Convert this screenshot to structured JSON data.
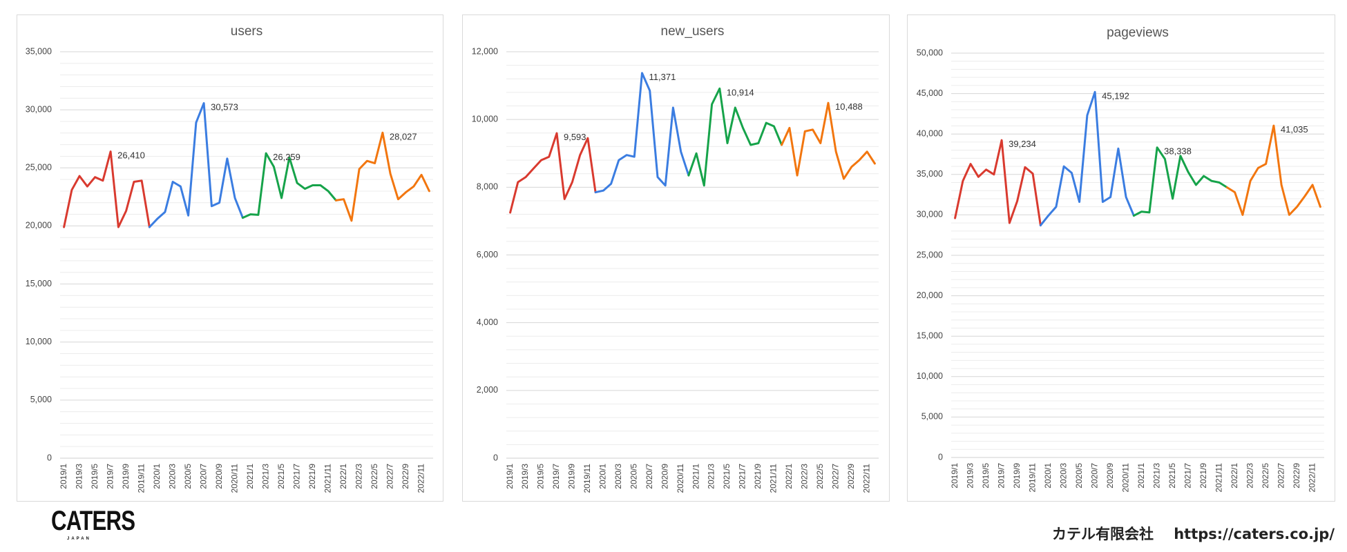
{
  "chart_data": [
    {
      "type": "line",
      "title": "users",
      "ylim": [
        0,
        35000
      ],
      "yticks": [
        "0",
        "5,000",
        "10,000",
        "15,000",
        "20,000",
        "25,000",
        "30,000",
        "35,000"
      ],
      "x": [
        "2019/1",
        "2019/2",
        "2019/3",
        "2019/4",
        "2019/5",
        "2019/6",
        "2019/7",
        "2019/8",
        "2019/9",
        "2019/10",
        "2019/11",
        "2019/12",
        "2020/1",
        "2020/2",
        "2020/3",
        "2020/4",
        "2020/5",
        "2020/6",
        "2020/7",
        "2020/8",
        "2020/9",
        "2020/10",
        "2020/11",
        "2020/12",
        "2021/1",
        "2021/2",
        "2021/3",
        "2021/4",
        "2021/5",
        "2021/6",
        "2021/7",
        "2021/8",
        "2021/9",
        "2021/10",
        "2021/11",
        "2021/12",
        "2022/1",
        "2022/2",
        "2022/3",
        "2022/4",
        "2022/5",
        "2022/6",
        "2022/7",
        "2022/8",
        "2022/9",
        "2022/10",
        "2022/11",
        "2022/12"
      ],
      "xticks": [
        "2019/1",
        "2019/3",
        "2019/5",
        "2019/7",
        "2019/9",
        "2019/11",
        "2020/1",
        "2020/3",
        "2020/5",
        "2020/7",
        "2020/9",
        "2020/11",
        "2021/1",
        "2021/3",
        "2021/5",
        "2021/7",
        "2021/9",
        "2021/11",
        "2022/1",
        "2022/3",
        "2022/5",
        "2022/7",
        "2022/9",
        "2022/11"
      ],
      "values": [
        19900,
        23100,
        24300,
        23400,
        24200,
        23900,
        26410,
        19900,
        21300,
        23800,
        23900,
        19900,
        20600,
        21200,
        23800,
        23400,
        20900,
        28900,
        30573,
        21700,
        22000,
        25800,
        22400,
        20700,
        21000,
        20950,
        26259,
        25100,
        22400,
        25900,
        23700,
        23200,
        23500,
        23500,
        23000,
        22200,
        22300,
        20450,
        24900,
        25600,
        25400,
        28027,
        24500,
        22300,
        22900,
        23400,
        24400,
        23000
      ],
      "segments": [
        {
          "name": "2019",
          "color": "#d93a2f",
          "range": [
            0,
            11
          ]
        },
        {
          "name": "2020",
          "color": "#3b7de1",
          "range": [
            11,
            23
          ]
        },
        {
          "name": "2021",
          "color": "#16a34a",
          "range": [
            23,
            35
          ]
        },
        {
          "name": "2022",
          "color": "#f2760f",
          "range": [
            35,
            47
          ]
        }
      ],
      "labels": [
        {
          "index": 6,
          "text": "26,410"
        },
        {
          "index": 18,
          "text": "30,573"
        },
        {
          "index": 26,
          "text": "26,259"
        },
        {
          "index": 41,
          "text": "28,027"
        }
      ]
    },
    {
      "type": "line",
      "title": "new_users",
      "ylim": [
        0,
        12000
      ],
      "yticks": [
        "0",
        "2,000",
        "4,000",
        "6,000",
        "8,000",
        "10,000",
        "12,000"
      ],
      "x": [
        "2019/1",
        "2019/2",
        "2019/3",
        "2019/4",
        "2019/5",
        "2019/6",
        "2019/7",
        "2019/8",
        "2019/9",
        "2019/10",
        "2019/11",
        "2019/12",
        "2020/1",
        "2020/2",
        "2020/3",
        "2020/4",
        "2020/5",
        "2020/6",
        "2020/7",
        "2020/8",
        "2020/9",
        "2020/10",
        "2020/11",
        "2020/12",
        "2021/1",
        "2021/2",
        "2021/3",
        "2021/4",
        "2021/5",
        "2021/6",
        "2021/7",
        "2021/8",
        "2021/9",
        "2021/10",
        "2021/11",
        "2021/12",
        "2022/1",
        "2022/2",
        "2022/3",
        "2022/4",
        "2022/5",
        "2022/6",
        "2022/7",
        "2022/8",
        "2022/9",
        "2022/10",
        "2022/11",
        "2022/12"
      ],
      "xticks": [
        "2019/1",
        "2019/3",
        "2019/5",
        "2019/7",
        "2019/9",
        "2019/11",
        "2020/1",
        "2020/3",
        "2020/5",
        "2020/7",
        "2020/9",
        "2020/11",
        "2021/1",
        "2021/3",
        "2021/5",
        "2021/7",
        "2021/9",
        "2021/11",
        "2022/1",
        "2022/3",
        "2022/5",
        "2022/7",
        "2022/9",
        "2022/11"
      ],
      "values": [
        7250,
        8150,
        8300,
        8550,
        8800,
        8900,
        9593,
        7650,
        8150,
        8950,
        9450,
        7850,
        7900,
        8100,
        8800,
        8950,
        8900,
        11371,
        10850,
        8300,
        8050,
        10350,
        9050,
        8350,
        9000,
        8050,
        10450,
        10914,
        9300,
        10350,
        9750,
        9250,
        9300,
        9900,
        9800,
        9250,
        9750,
        8350,
        9650,
        9700,
        9300,
        10488,
        9050,
        8250,
        8600,
        8800,
        9050,
        8700
      ],
      "segments": [
        {
          "name": "2019",
          "color": "#d93a2f",
          "range": [
            0,
            11
          ]
        },
        {
          "name": "2020",
          "color": "#3b7de1",
          "range": [
            11,
            23
          ]
        },
        {
          "name": "2021",
          "color": "#16a34a",
          "range": [
            23,
            35
          ]
        },
        {
          "name": "2022",
          "color": "#f2760f",
          "range": [
            35,
            47
          ]
        }
      ],
      "labels": [
        {
          "index": 6,
          "text": "9,593"
        },
        {
          "index": 17,
          "text": "11,371"
        },
        {
          "index": 27,
          "text": "10,914"
        },
        {
          "index": 41,
          "text": "10,488"
        }
      ]
    },
    {
      "type": "line",
      "title": "pageviews",
      "ylim": [
        0,
        50000
      ],
      "yticks": [
        "0",
        "5,000",
        "10,000",
        "15,000",
        "20,000",
        "25,000",
        "30,000",
        "35,000",
        "40,000",
        "45,000",
        "50,000"
      ],
      "x": [
        "2019/1",
        "2019/2",
        "2019/3",
        "2019/4",
        "2019/5",
        "2019/6",
        "2019/7",
        "2019/8",
        "2019/9",
        "2019/10",
        "2019/11",
        "2019/12",
        "2020/1",
        "2020/2",
        "2020/3",
        "2020/4",
        "2020/5",
        "2020/6",
        "2020/7",
        "2020/8",
        "2020/9",
        "2020/10",
        "2020/11",
        "2020/12",
        "2021/1",
        "2021/2",
        "2021/3",
        "2021/4",
        "2021/5",
        "2021/6",
        "2021/7",
        "2021/8",
        "2021/9",
        "2021/10",
        "2021/11",
        "2021/12",
        "2022/1",
        "2022/2",
        "2022/3",
        "2022/4",
        "2022/5",
        "2022/6",
        "2022/7",
        "2022/8",
        "2022/9",
        "2022/10",
        "2022/11",
        "2022/12"
      ],
      "xticks": [
        "2019/1",
        "2019/3",
        "2019/5",
        "2019/7",
        "2019/9",
        "2019/11",
        "2020/1",
        "2020/3",
        "2020/5",
        "2020/7",
        "2020/9",
        "2020/11",
        "2021/1",
        "2021/3",
        "2021/5",
        "2021/7",
        "2021/9",
        "2021/11",
        "2022/1",
        "2022/3",
        "2022/5",
        "2022/7",
        "2022/9",
        "2022/11"
      ],
      "values": [
        29600,
        34200,
        36300,
        34700,
        35600,
        35000,
        39234,
        29000,
        31700,
        35900,
        35100,
        28700,
        29900,
        31000,
        36000,
        35200,
        31600,
        42300,
        45192,
        31600,
        32200,
        38200,
        32200,
        29900,
        30400,
        30300,
        38338,
        36900,
        32000,
        37300,
        35300,
        33700,
        34800,
        34200,
        34000,
        33400,
        32800,
        30000,
        34200,
        35800,
        36300,
        41035,
        33700,
        30000,
        31000,
        32300,
        33700,
        31000
      ],
      "segments": [
        {
          "name": "2019",
          "color": "#d93a2f",
          "range": [
            0,
            11
          ]
        },
        {
          "name": "2020",
          "color": "#3b7de1",
          "range": [
            11,
            23
          ]
        },
        {
          "name": "2021",
          "color": "#16a34a",
          "range": [
            23,
            35
          ]
        },
        {
          "name": "2022",
          "color": "#f2760f",
          "range": [
            35,
            47
          ]
        }
      ],
      "labels": [
        {
          "index": 6,
          "text": "39,234"
        },
        {
          "index": 18,
          "text": "45,192"
        },
        {
          "index": 26,
          "text": "38,338"
        },
        {
          "index": 41,
          "text": "41,035"
        }
      ]
    }
  ],
  "footer": {
    "logo_text": "CATERS",
    "logo_sub": "JAPAN",
    "company": "カテル有限会社",
    "url": "https://caters.co.jp/"
  }
}
